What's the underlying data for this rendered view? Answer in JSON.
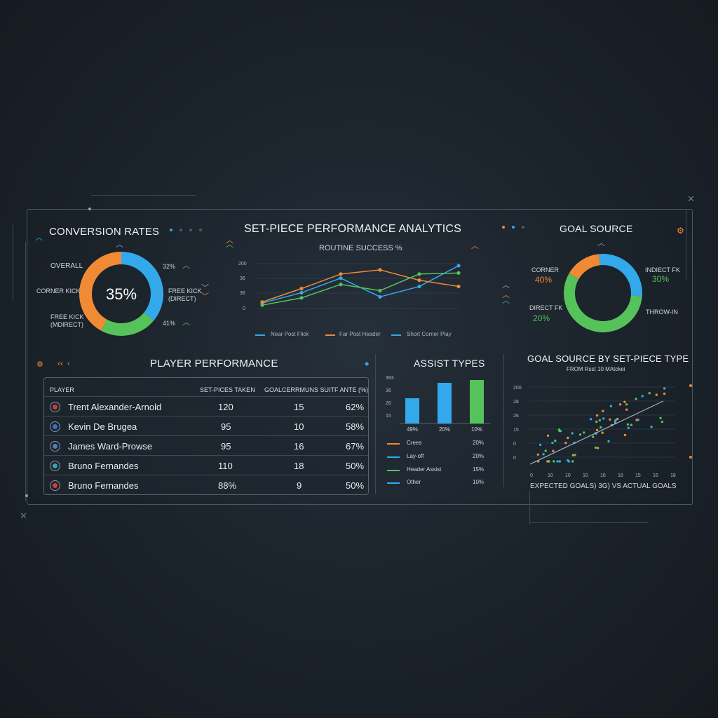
{
  "colors": {
    "orange": "#f08a35",
    "blue": "#33a9ec",
    "green": "#55c25a",
    "bg": "#1c242c"
  },
  "conversion": {
    "title": "CONVERSION RATES",
    "center": "35%",
    "left_labels": [
      "OVERALL",
      "CORNER KICK",
      "FREE KICK",
      "(MDIRECT)"
    ],
    "right_labels": [
      "32%",
      "FREE KICK",
      "(DIRECT)",
      "41%"
    ],
    "segments": [
      {
        "name": "blue",
        "value": 0.36
      },
      {
        "name": "green",
        "value": 0.22
      },
      {
        "name": "orange",
        "value": 0.42
      }
    ]
  },
  "main_title": "SET-PIECE PERFORMANCE ANALYTICS",
  "routine": {
    "subtitle": "ROUTINE SUCCESS %",
    "yticks": [
      "200",
      "36",
      "36",
      "0"
    ],
    "legend": [
      "Near Post Flick",
      "Far Post Header",
      "Short Corner Play"
    ]
  },
  "chart_data": [
    {
      "type": "line",
      "title": "ROUTINE SUCCESS %",
      "x": [
        1,
        2,
        3,
        4,
        5,
        6
      ],
      "series": [
        {
          "name": "Near Post Flick",
          "color": "#33a9ec",
          "values": [
            12,
            22,
            36,
            18,
            28,
            48
          ]
        },
        {
          "name": "Far Post Header",
          "color": "#f08a35",
          "values": [
            13,
            26,
            40,
            44,
            34,
            28
          ]
        },
        {
          "name": "Short Corner Play",
          "color": "#55c25a",
          "values": [
            10,
            17,
            30,
            24,
            40,
            41
          ]
        }
      ]
    },
    {
      "type": "bar",
      "title": "ASSIST TYPES",
      "categories": [
        "49%",
        "20%",
        "10%"
      ],
      "values": [
        18,
        29,
        31
      ],
      "colors": [
        "#33a9ec",
        "#33a9ec",
        "#55c25a"
      ],
      "yticks": [
        "383",
        "36",
        "26",
        "15"
      ]
    },
    {
      "type": "scatter",
      "title": "GOAL SOURCE BY SET-PIECE TYPE",
      "subtitle": "FROM Rsst 10 MAtckei",
      "xlabel": "EXPECTED GOALS) 3G) VS ACTUAL GOALS",
      "xticks": [
        "0",
        "10",
        "10",
        "10",
        "18",
        "18",
        "15",
        "16",
        "18"
      ],
      "yticks": [
        "200",
        "28",
        "26",
        "15",
        "0",
        "0"
      ]
    }
  ],
  "goal_source": {
    "title": "GOAL SOURCE",
    "labels": {
      "corner": "CORNER",
      "corner_pct": "40%",
      "indirect": "INDIECT FK",
      "indirect_pct": "30%",
      "direct": "DIRECT FK",
      "direct_pct": "20%",
      "throw": "THROW-IN"
    },
    "segments": [
      {
        "name": "orange",
        "value": 0.15
      },
      {
        "name": "blue",
        "value": 0.28
      },
      {
        "name": "green",
        "value": 0.57
      }
    ]
  },
  "players": {
    "title": "PLAYER PERFORMANCE",
    "headers": [
      "PLAYER",
      "SET-PICES TAKEN",
      "GOALCERRMUNS SUITF ANTE (%)"
    ],
    "rows": [
      {
        "name": "Trent Alexander-Arnold",
        "taken": "120",
        "goals": "15",
        "rate": "62%",
        "icon": "#d33b3b"
      },
      {
        "name": "Kevin De Brugea",
        "taken": "95",
        "goals": "10",
        "rate": "58%",
        "icon": "#3a6fd0"
      },
      {
        "name": "James Ward-Prowse",
        "taken": "95",
        "goals": "16",
        "rate": "67%",
        "icon": "#4a7fb8"
      },
      {
        "name": "Bruno Fernandes",
        "taken": "110",
        "goals": "18",
        "rate": "50%",
        "icon": "#2fa6b8"
      },
      {
        "name": "Bruno Fernandes",
        "taken": "88%",
        "goals": "9",
        "rate": "50%",
        "icon": "#d33b3b"
      }
    ]
  },
  "assist": {
    "title": "ASSIST TYPES",
    "legend": [
      {
        "label": "Crees",
        "pct": "20%",
        "color": "#f08a35"
      },
      {
        "label": "Lay-off",
        "pct": "20%",
        "color": "#33a9ec"
      },
      {
        "label": "Header Assist",
        "pct": "15%",
        "color": "#55c25a"
      },
      {
        "label": "Other",
        "pct": "10%",
        "color": "#33a9ec"
      }
    ]
  }
}
